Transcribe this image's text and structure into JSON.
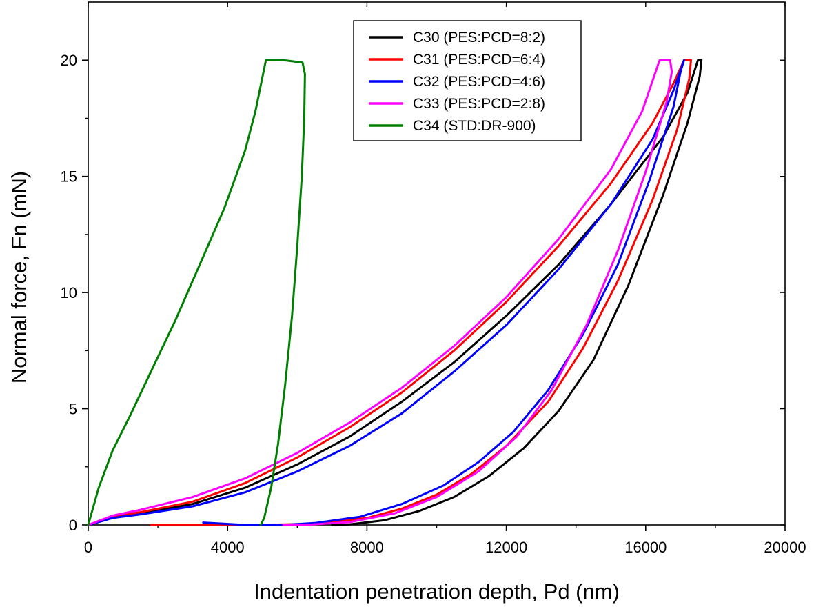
{
  "chart_data": {
    "type": "line",
    "title": "",
    "xlabel": "Indentation penetration depth, Pd (nm)",
    "ylabel": "Normal force, Fn (mN)",
    "xlim": [
      0,
      20000
    ],
    "ylim": [
      0,
      22.5
    ],
    "xticks": [
      0,
      4000,
      8000,
      12000,
      16000,
      20000
    ],
    "yticks": [
      0,
      5,
      10,
      15,
      20
    ],
    "xtick_labels": [
      "0",
      "4000",
      "8000",
      "12000",
      "16000",
      "20000"
    ],
    "ytick_labels": [
      "0",
      "5",
      "10",
      "15",
      "20"
    ],
    "grid": false,
    "legend_position": "top-center",
    "series": [
      {
        "name": "C30 (PES:PCD=8:2)",
        "color": "#000000",
        "points": [
          [
            0,
            0
          ],
          [
            700,
            0.3
          ],
          [
            1500,
            0.5
          ],
          [
            3000,
            0.9
          ],
          [
            4500,
            1.6
          ],
          [
            6000,
            2.6
          ],
          [
            7500,
            3.8
          ],
          [
            9000,
            5.3
          ],
          [
            10500,
            7.0
          ],
          [
            12000,
            9.0
          ],
          [
            13500,
            11.2
          ],
          [
            15000,
            13.8
          ],
          [
            16500,
            16.7
          ],
          [
            17200,
            18.6
          ],
          [
            17500,
            20.0
          ],
          [
            17600,
            20.0
          ],
          [
            17550,
            19.3
          ],
          [
            17200,
            17.3
          ],
          [
            16500,
            14.2
          ],
          [
            15500,
            10.3
          ],
          [
            14500,
            7.1
          ],
          [
            13500,
            4.9
          ],
          [
            12500,
            3.3
          ],
          [
            11500,
            2.1
          ],
          [
            10500,
            1.2
          ],
          [
            9500,
            0.6
          ],
          [
            8500,
            0.2
          ],
          [
            7500,
            0.02
          ],
          [
            7000,
            0
          ]
        ]
      },
      {
        "name": "C31 (PES:PCD=6:4)",
        "color": "#ff0000",
        "points": [
          [
            0,
            0
          ],
          [
            700,
            0.35
          ],
          [
            1500,
            0.55
          ],
          [
            3000,
            1.0
          ],
          [
            4500,
            1.8
          ],
          [
            6000,
            2.9
          ],
          [
            7500,
            4.2
          ],
          [
            9000,
            5.7
          ],
          [
            10500,
            7.5
          ],
          [
            12000,
            9.6
          ],
          [
            13500,
            12.0
          ],
          [
            15000,
            14.7
          ],
          [
            16200,
            17.3
          ],
          [
            16800,
            19.0
          ],
          [
            17100,
            20.0
          ],
          [
            17300,
            20.0
          ],
          [
            17250,
            19.2
          ],
          [
            16900,
            17.0
          ],
          [
            16200,
            14.0
          ],
          [
            15200,
            10.5
          ],
          [
            14200,
            7.6
          ],
          [
            13200,
            5.3
          ],
          [
            12000,
            3.4
          ],
          [
            11000,
            2.2
          ],
          [
            10000,
            1.3
          ],
          [
            9000,
            0.7
          ],
          [
            8000,
            0.3
          ],
          [
            6500,
            0.05
          ],
          [
            5000,
            0
          ],
          [
            1800,
            0
          ]
        ]
      },
      {
        "name": "C32 (PES:PCD=4:6)",
        "color": "#0000ff",
        "points": [
          [
            0,
            0
          ],
          [
            700,
            0.3
          ],
          [
            1500,
            0.45
          ],
          [
            3000,
            0.8
          ],
          [
            4500,
            1.4
          ],
          [
            6000,
            2.3
          ],
          [
            7500,
            3.4
          ],
          [
            9000,
            4.8
          ],
          [
            10500,
            6.6
          ],
          [
            12000,
            8.6
          ],
          [
            13500,
            11.0
          ],
          [
            15000,
            13.8
          ],
          [
            16200,
            16.6
          ],
          [
            16800,
            18.7
          ],
          [
            17100,
            20.0
          ],
          [
            17000,
            19.5
          ],
          [
            16800,
            18.0
          ],
          [
            16100,
            14.8
          ],
          [
            15200,
            11.2
          ],
          [
            14200,
            8.2
          ],
          [
            13200,
            5.8
          ],
          [
            12200,
            4.0
          ],
          [
            11200,
            2.7
          ],
          [
            10200,
            1.7
          ],
          [
            9000,
            0.9
          ],
          [
            7800,
            0.35
          ],
          [
            6500,
            0.08
          ],
          [
            5600,
            0
          ],
          [
            4500,
            0
          ],
          [
            3300,
            0.1
          ]
        ]
      },
      {
        "name": "C33 (PES:PCD=2:8)",
        "color": "#ff00ff",
        "points": [
          [
            0,
            0
          ],
          [
            700,
            0.4
          ],
          [
            1500,
            0.65
          ],
          [
            3000,
            1.2
          ],
          [
            4500,
            2.0
          ],
          [
            6000,
            3.1
          ],
          [
            7500,
            4.4
          ],
          [
            9000,
            5.9
          ],
          [
            10500,
            7.7
          ],
          [
            12000,
            9.8
          ],
          [
            13500,
            12.3
          ],
          [
            15000,
            15.3
          ],
          [
            15900,
            17.8
          ],
          [
            16400,
            20.0
          ],
          [
            16700,
            20.0
          ],
          [
            16750,
            19.5
          ],
          [
            16600,
            18.2
          ],
          [
            16000,
            15.2
          ],
          [
            15200,
            11.8
          ],
          [
            14300,
            8.6
          ],
          [
            13300,
            5.8
          ],
          [
            12300,
            3.8
          ],
          [
            11200,
            2.3
          ],
          [
            10000,
            1.2
          ],
          [
            8800,
            0.5
          ],
          [
            7500,
            0.12
          ],
          [
            6200,
            0
          ],
          [
            5600,
            0
          ]
        ]
      },
      {
        "name": "C34 (STD:DR-900)",
        "color": "#008000",
        "points": [
          [
            0,
            0
          ],
          [
            300,
            1.6
          ],
          [
            700,
            3.2
          ],
          [
            1200,
            4.7
          ],
          [
            1800,
            6.6
          ],
          [
            2500,
            8.8
          ],
          [
            3200,
            11.2
          ],
          [
            3900,
            13.6
          ],
          [
            4500,
            16.1
          ],
          [
            4800,
            17.8
          ],
          [
            5100,
            20.0
          ],
          [
            5600,
            20.0
          ],
          [
            6150,
            19.9
          ],
          [
            6220,
            19.4
          ],
          [
            6200,
            17.5
          ],
          [
            6130,
            15.0
          ],
          [
            6000,
            12.0
          ],
          [
            5850,
            9.0
          ],
          [
            5650,
            6.0
          ],
          [
            5450,
            3.5
          ],
          [
            5250,
            1.6
          ],
          [
            5050,
            0.3
          ],
          [
            4950,
            0
          ]
        ]
      }
    ]
  }
}
